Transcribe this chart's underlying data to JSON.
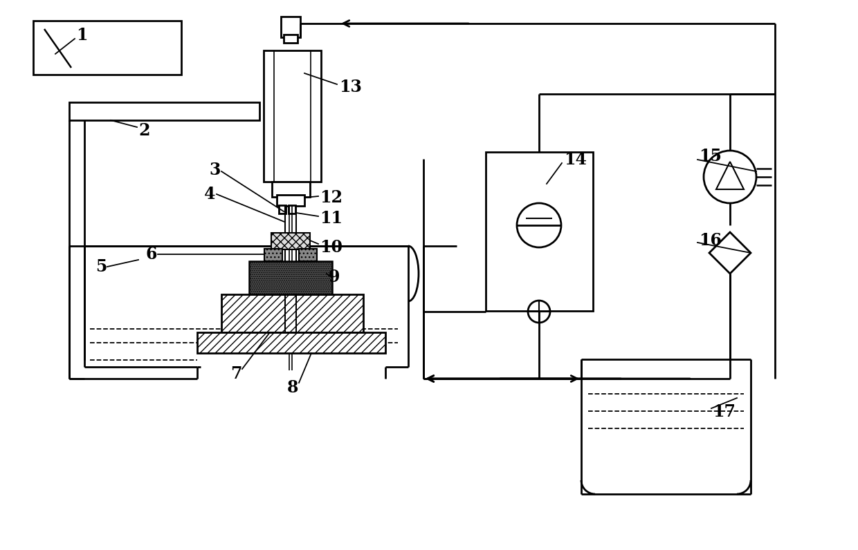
{
  "bg": "#ffffff",
  "lc": "#000000",
  "lw": 2.0,
  "fs": 17,
  "ff": "DejaVu Serif"
}
